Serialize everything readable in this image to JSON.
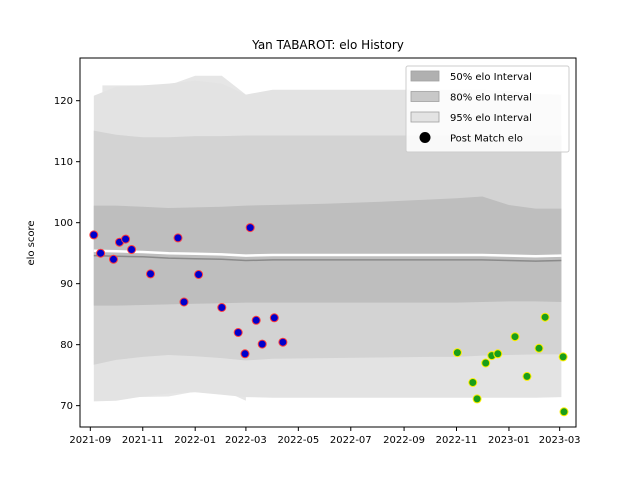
{
  "chart_data": {
    "type": "line",
    "title": "Yan TABAROT: elo History",
    "xlabel": "",
    "ylabel": "elo score",
    "xlim": [
      "2021-08-20",
      "2023-03-20"
    ],
    "ylim": [
      66.5,
      127
    ],
    "x_ticks": [
      {
        "date": "2021-09-01",
        "label": "2021-09"
      },
      {
        "date": "2021-11-01",
        "label": "2021-11"
      },
      {
        "date": "2022-01-01",
        "label": "2022-01"
      },
      {
        "date": "2022-03-01",
        "label": "2022-03"
      },
      {
        "date": "2022-05-01",
        "label": "2022-05"
      },
      {
        "date": "2022-07-01",
        "label": "2022-07"
      },
      {
        "date": "2022-09-01",
        "label": "2022-09"
      },
      {
        "date": "2022-11-01",
        "label": "2022-11"
      },
      {
        "date": "2023-01-01",
        "label": "2023-01"
      },
      {
        "date": "2023-03-01",
        "label": "2023-03"
      }
    ],
    "y_ticks": [
      70,
      80,
      90,
      100,
      110,
      120
    ],
    "legend": {
      "placement": "top-right",
      "entries": [
        {
          "label": "50% elo Interval",
          "color": "#b0b0b0"
        },
        {
          "label": "80% elo Interval",
          "color": "#c8c8c8"
        },
        {
          "label": "95% elo Interval",
          "color": "#e3e3e3"
        },
        {
          "label": "Post Match elo",
          "color": "#000000"
        }
      ]
    },
    "bands": {
      "x": [
        "2021-09-05",
        "2021-10-01",
        "2021-11-01",
        "2021-12-01",
        "2022-01-01",
        "2022-02-01",
        "2022-03-01",
        "2022-04-01",
        "2022-06-01",
        "2022-08-01",
        "2022-10-01",
        "2022-11-01",
        "2022-12-01",
        "2023-01-01",
        "2023-02-01",
        "2023-03-03"
      ],
      "mean": [
        94.6,
        94.5,
        94.4,
        94.2,
        94.1,
        94.0,
        93.8,
        93.9,
        93.9,
        93.9,
        93.9,
        93.9,
        93.9,
        93.8,
        93.7,
        93.8
      ],
      "p50": {
        "lower": [
          86.4,
          86.4,
          86.5,
          86.6,
          86.7,
          86.8,
          86.9,
          86.9,
          86.9,
          86.9,
          86.9,
          86.9,
          87.0,
          87.1,
          87.1,
          87.0
        ],
        "upper": [
          102.8,
          102.8,
          102.6,
          102.4,
          102.5,
          102.6,
          102.8,
          102.9,
          103.1,
          103.4,
          103.8,
          104.0,
          104.3,
          102.9,
          102.3,
          102.3
        ]
      },
      "p80": {
        "lower": [
          76.7,
          77.5,
          78.0,
          78.3,
          78.1,
          77.8,
          77.4,
          77.7,
          77.8,
          77.9,
          78.0,
          78.0,
          78.2,
          78.3,
          78.4,
          78.4
        ]
      },
      "p95": {
        "lower": [
          70.7,
          70.8,
          71.5,
          72.0,
          72.2,
          71.8,
          71.4,
          71.3,
          71.3,
          71.3,
          71.3,
          71.3,
          71.3,
          71.3,
          71.3,
          71.4
        ],
        "upper": [
          120.8,
          122.3,
          122.5,
          122.8,
          123.3,
          122.8,
          121.0,
          121.8,
          121.8,
          121.8,
          121.8,
          121.8,
          121.8,
          121.6,
          121.1,
          121.0
        ]
      },
      "p80_upper": [
        115.1,
        114.4,
        114.0,
        114.0,
        114.2,
        114.2,
        114.3,
        114.3,
        114.3,
        114.3,
        114.3,
        114.3,
        114.3,
        114.3,
        114.3,
        114.3
      ]
    },
    "bands_overlap_light": {
      "x": [
        "2021-09-15",
        "2021-12-01",
        "2022-01-01",
        "2022-02-01",
        "2022-03-01"
      ],
      "lower": [
        71.3,
        71.5,
        72.3,
        72.6,
        70.8
      ],
      "upper": [
        122.5,
        122.5,
        124.1,
        124.1,
        121.0
      ]
    },
    "series": [
      {
        "name": "Post Match elo",
        "marker_face": "#0000cc",
        "marker_edge": "#ff3b3b",
        "x": [
          "2021-09-05",
          "2021-09-13",
          "2021-09-28",
          "2021-10-05",
          "2021-10-12",
          "2021-10-19",
          "2021-11-10",
          "2021-12-12",
          "2021-12-19",
          "2022-01-05",
          "2022-02-01",
          "2022-02-20",
          "2022-02-28",
          "2022-03-06",
          "2022-03-13",
          "2022-03-20",
          "2022-04-03",
          "2022-04-13"
        ],
        "y": [
          98.0,
          95.0,
          94.0,
          96.8,
          97.3,
          95.6,
          91.6,
          97.5,
          87.0,
          91.5,
          86.1,
          82.0,
          78.5,
          99.2,
          84.0,
          80.1,
          84.4,
          80.4
        ]
      },
      {
        "name": "Post Match elo",
        "marker_face": "#1a9e1a",
        "marker_edge": "#ffee00",
        "x": [
          "2022-11-02",
          "2022-11-20",
          "2022-11-25",
          "2022-12-05",
          "2022-12-12",
          "2022-12-19",
          "2023-01-08",
          "2023-01-22",
          "2023-02-05",
          "2023-02-12",
          "2023-03-05",
          "2023-03-06"
        ],
        "y": [
          78.7,
          73.8,
          71.1,
          77.0,
          78.2,
          78.5,
          81.3,
          74.8,
          79.4,
          84.5,
          78.0,
          69.0
        ]
      }
    ]
  }
}
